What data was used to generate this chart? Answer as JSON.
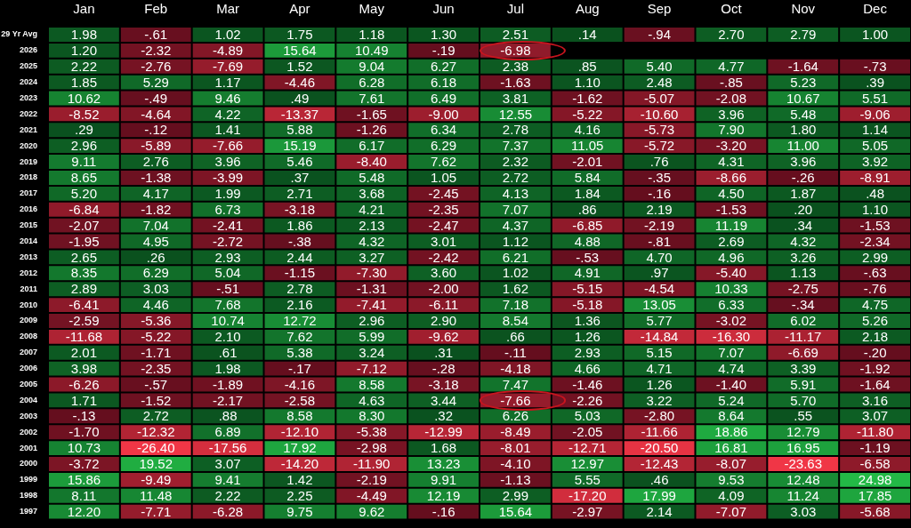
{
  "chart_data": {
    "type": "heatmap",
    "categories": [
      "Jan",
      "Feb",
      "Mar",
      "Apr",
      "May",
      "Jun",
      "Jul",
      "Aug",
      "Sep",
      "Oct",
      "Nov",
      "Dec"
    ],
    "y_categories": [
      "29 Yr Avg",
      "2026",
      "2025",
      "2024",
      "2023",
      "2022",
      "2021",
      "2020",
      "2019",
      "2018",
      "2017",
      "2016",
      "2015",
      "2014",
      "2013",
      "2012",
      "2011",
      "2010",
      "2009",
      "2008",
      "2007",
      "2006",
      "2005",
      "2004",
      "2003",
      "2002",
      "2001",
      "2000",
      "1999",
      "1998",
      "1997"
    ],
    "cells": [
      [
        1.98,
        -0.61,
        1.02,
        1.75,
        1.18,
        1.3,
        2.51,
        0.14,
        -0.94,
        2.7,
        2.79,
        1.0
      ],
      [
        1.2,
        -2.32,
        -4.89,
        15.64,
        10.49,
        -0.19,
        -6.98,
        null,
        null,
        null,
        null,
        null
      ],
      [
        2.22,
        -2.76,
        -7.69,
        1.52,
        9.04,
        6.27,
        2.38,
        0.85,
        5.4,
        4.77,
        -1.64,
        -0.73
      ],
      [
        1.85,
        5.29,
        1.17,
        -4.46,
        6.28,
        6.18,
        -1.63,
        1.1,
        2.48,
        -0.85,
        5.23,
        0.39
      ],
      [
        10.62,
        -0.49,
        9.46,
        0.49,
        7.61,
        6.49,
        3.81,
        -1.62,
        -5.07,
        -2.08,
        10.67,
        5.51
      ],
      [
        -8.52,
        -4.64,
        4.22,
        -13.37,
        -1.65,
        -9.0,
        12.55,
        -5.22,
        -10.6,
        3.96,
        5.48,
        -9.06
      ],
      [
        0.29,
        -0.12,
        1.41,
        5.88,
        -1.26,
        6.34,
        2.78,
        4.16,
        -5.73,
        7.9,
        1.8,
        1.14
      ],
      [
        2.96,
        -5.89,
        -7.66,
        15.19,
        6.17,
        6.29,
        7.37,
        11.05,
        -5.72,
        -3.2,
        11.0,
        5.05
      ],
      [
        9.11,
        2.76,
        3.96,
        5.46,
        -8.4,
        7.62,
        2.32,
        -2.01,
        0.76,
        4.31,
        3.96,
        3.92
      ],
      [
        8.65,
        -1.38,
        -3.99,
        0.37,
        5.48,
        1.05,
        2.72,
        5.84,
        -0.35,
        -8.66,
        -0.26,
        -8.91
      ],
      [
        5.2,
        4.17,
        1.99,
        2.71,
        3.68,
        -2.45,
        4.13,
        1.84,
        -0.16,
        4.5,
        1.87,
        0.48
      ],
      [
        -6.84,
        -1.82,
        6.73,
        -3.18,
        4.21,
        -2.35,
        7.07,
        0.86,
        2.19,
        -1.53,
        0.2,
        1.1
      ],
      [
        -2.07,
        7.04,
        -2.41,
        1.86,
        2.13,
        -2.47,
        4.37,
        -6.85,
        -2.19,
        11.19,
        0.34,
        -1.53
      ],
      [
        -1.95,
        4.95,
        -2.72,
        -0.38,
        4.32,
        3.01,
        1.12,
        4.88,
        -0.81,
        2.69,
        4.32,
        -2.34
      ],
      [
        2.65,
        0.26,
        2.93,
        2.44,
        3.27,
        -2.42,
        6.21,
        -0.53,
        4.7,
        4.96,
        3.26,
        2.99
      ],
      [
        8.35,
        6.29,
        5.04,
        -1.15,
        -7.3,
        3.6,
        1.02,
        4.91,
        0.97,
        -5.4,
        1.13,
        -0.63
      ],
      [
        2.89,
        3.03,
        -0.51,
        2.78,
        -1.31,
        -2.0,
        1.62,
        -5.15,
        -4.54,
        10.33,
        -2.75,
        -0.76
      ],
      [
        -6.41,
        4.46,
        7.68,
        2.16,
        -7.41,
        -6.11,
        7.18,
        -5.18,
        13.05,
        6.33,
        -0.34,
        4.75
      ],
      [
        -2.59,
        -5.36,
        10.74,
        12.72,
        2.96,
        2.9,
        8.54,
        1.36,
        5.77,
        -3.02,
        6.02,
        5.26
      ],
      [
        -11.68,
        -5.22,
        2.1,
        7.62,
        5.99,
        -9.62,
        0.66,
        1.26,
        -14.84,
        -16.3,
        -11.17,
        2.18
      ],
      [
        2.01,
        -1.71,
        0.61,
        5.38,
        3.24,
        0.31,
        -0.11,
        2.93,
        5.15,
        7.07,
        -6.69,
        -0.2
      ],
      [
        3.98,
        -2.35,
        1.98,
        -0.17,
        -7.12,
        -0.28,
        -4.18,
        4.66,
        4.71,
        4.74,
        3.39,
        -1.92
      ],
      [
        -6.26,
        -0.57,
        -1.89,
        -4.16,
        8.58,
        -3.18,
        7.47,
        -1.46,
        1.26,
        -1.4,
        5.91,
        -1.64
      ],
      [
        1.71,
        -1.52,
        -2.17,
        -2.58,
        4.63,
        3.44,
        -7.66,
        -2.26,
        3.22,
        5.24,
        5.7,
        3.16
      ],
      [
        -0.13,
        2.72,
        0.88,
        8.58,
        8.3,
        0.32,
        6.26,
        5.03,
        -2.8,
        8.64,
        0.55,
        3.07
      ],
      [
        -1.7,
        -12.32,
        6.89,
        -12.1,
        -5.38,
        -12.99,
        -8.49,
        -2.05,
        -11.66,
        18.86,
        12.79,
        -11.8
      ],
      [
        10.73,
        -26.4,
        -17.56,
        17.92,
        -2.98,
        1.68,
        -8.01,
        -12.71,
        -20.5,
        16.81,
        16.95,
        -1.19
      ],
      [
        -3.72,
        19.52,
        3.07,
        -14.2,
        -11.9,
        13.23,
        -4.1,
        12.97,
        -12.43,
        -8.07,
        -23.63,
        -6.58
      ],
      [
        15.86,
        -9.49,
        9.41,
        1.42,
        -2.19,
        9.91,
        -1.13,
        5.55,
        0.46,
        9.53,
        12.48,
        24.98
      ],
      [
        8.11,
        11.48,
        2.22,
        2.25,
        -4.49,
        12.19,
        2.99,
        -17.2,
        17.99,
        4.09,
        11.24,
        17.85
      ],
      [
        12.2,
        -7.71,
        -6.28,
        9.75,
        9.62,
        -0.16,
        15.64,
        -2.97,
        2.14,
        -7.07,
        3.03,
        -5.68
      ]
    ],
    "cell_labels": [
      [
        "1.98",
        "-.61",
        "1.02",
        "1.75",
        "1.18",
        "1.30",
        "2.51",
        ".14",
        "-.94",
        "2.70",
        "2.79",
        "1.00"
      ],
      [
        "1.20",
        "-2.32",
        "-4.89",
        "15.64",
        "10.49",
        "-.19",
        "-6.98",
        null,
        null,
        null,
        null,
        null
      ],
      [
        "2.22",
        "-2.76",
        "-7.69",
        "1.52",
        "9.04",
        "6.27",
        "2.38",
        ".85",
        "5.40",
        "4.77",
        "-1.64",
        "-.73"
      ],
      [
        "1.85",
        "5.29",
        "1.17",
        "-4.46",
        "6.28",
        "6.18",
        "-1.63",
        "1.10",
        "2.48",
        "-.85",
        "5.23",
        ".39"
      ],
      [
        "10.62",
        "-.49",
        "9.46",
        ".49",
        "7.61",
        "6.49",
        "3.81",
        "-1.62",
        "-5.07",
        "-2.08",
        "10.67",
        "5.51"
      ],
      [
        "-8.52",
        "-4.64",
        "4.22",
        "-13.37",
        "-1.65",
        "-9.00",
        "12.55",
        "-5.22",
        "-10.60",
        "3.96",
        "5.48",
        "-9.06"
      ],
      [
        ".29",
        "-.12",
        "1.41",
        "5.88",
        "-1.26",
        "6.34",
        "2.78",
        "4.16",
        "-5.73",
        "7.90",
        "1.80",
        "1.14"
      ],
      [
        "2.96",
        "-5.89",
        "-7.66",
        "15.19",
        "6.17",
        "6.29",
        "7.37",
        "11.05",
        "-5.72",
        "-3.20",
        "11.00",
        "5.05"
      ],
      [
        "9.11",
        "2.76",
        "3.96",
        "5.46",
        "-8.40",
        "7.62",
        "2.32",
        "-2.01",
        ".76",
        "4.31",
        "3.96",
        "3.92"
      ],
      [
        "8.65",
        "-1.38",
        "-3.99",
        ".37",
        "5.48",
        "1.05",
        "2.72",
        "5.84",
        "-.35",
        "-8.66",
        "-.26",
        "-8.91"
      ],
      [
        "5.20",
        "4.17",
        "1.99",
        "2.71",
        "3.68",
        "-2.45",
        "4.13",
        "1.84",
        "-.16",
        "4.50",
        "1.87",
        ".48"
      ],
      [
        "-6.84",
        "-1.82",
        "6.73",
        "-3.18",
        "4.21",
        "-2.35",
        "7.07",
        ".86",
        "2.19",
        "-1.53",
        ".20",
        "1.10"
      ],
      [
        "-2.07",
        "7.04",
        "-2.41",
        "1.86",
        "2.13",
        "-2.47",
        "4.37",
        "-6.85",
        "-2.19",
        "11.19",
        ".34",
        "-1.53"
      ],
      [
        "-1.95",
        "4.95",
        "-2.72",
        "-.38",
        "4.32",
        "3.01",
        "1.12",
        "4.88",
        "-.81",
        "2.69",
        "4.32",
        "-2.34"
      ],
      [
        "2.65",
        ".26",
        "2.93",
        "2.44",
        "3.27",
        "-2.42",
        "6.21",
        "-.53",
        "4.70",
        "4.96",
        "3.26",
        "2.99"
      ],
      [
        "8.35",
        "6.29",
        "5.04",
        "-1.15",
        "-7.30",
        "3.60",
        "1.02",
        "4.91",
        ".97",
        "-5.40",
        "1.13",
        "-.63"
      ],
      [
        "2.89",
        "3.03",
        "-.51",
        "2.78",
        "-1.31",
        "-2.00",
        "1.62",
        "-5.15",
        "-4.54",
        "10.33",
        "-2.75",
        "-.76"
      ],
      [
        "-6.41",
        "4.46",
        "7.68",
        "2.16",
        "-7.41",
        "-6.11",
        "7.18",
        "-5.18",
        "13.05",
        "6.33",
        "-.34",
        "4.75"
      ],
      [
        "-2.59",
        "-5.36",
        "10.74",
        "12.72",
        "2.96",
        "2.90",
        "8.54",
        "1.36",
        "5.77",
        "-3.02",
        "6.02",
        "5.26"
      ],
      [
        "-11.68",
        "-5.22",
        "2.10",
        "7.62",
        "5.99",
        "-9.62",
        ".66",
        "1.26",
        "-14.84",
        "-16.30",
        "-11.17",
        "2.18"
      ],
      [
        "2.01",
        "-1.71",
        ".61",
        "5.38",
        "3.24",
        ".31",
        "-.11",
        "2.93",
        "5.15",
        "7.07",
        "-6.69",
        "-.20"
      ],
      [
        "3.98",
        "-2.35",
        "1.98",
        "-.17",
        "-7.12",
        "-.28",
        "-4.18",
        "4.66",
        "4.71",
        "4.74",
        "3.39",
        "-1.92"
      ],
      [
        "-6.26",
        "-.57",
        "-1.89",
        "-4.16",
        "8.58",
        "-3.18",
        "7.47",
        "-1.46",
        "1.26",
        "-1.40",
        "5.91",
        "-1.64"
      ],
      [
        "1.71",
        "-1.52",
        "-2.17",
        "-2.58",
        "4.63",
        "3.44",
        "-7.66",
        "-2.26",
        "3.22",
        "5.24",
        "5.70",
        "3.16"
      ],
      [
        "-.13",
        "2.72",
        ".88",
        "8.58",
        "8.30",
        ".32",
        "6.26",
        "5.03",
        "-2.80",
        "8.64",
        ".55",
        "3.07"
      ],
      [
        "-1.70",
        "-12.32",
        "6.89",
        "-12.10",
        "-5.38",
        "-12.99",
        "-8.49",
        "-2.05",
        "-11.66",
        "18.86",
        "12.79",
        "-11.80"
      ],
      [
        "10.73",
        "-26.40",
        "-17.56",
        "17.92",
        "-2.98",
        "1.68",
        "-8.01",
        "-12.71",
        "-20.50",
        "16.81",
        "16.95",
        "-1.19"
      ],
      [
        "-3.72",
        "19.52",
        "3.07",
        "-14.20",
        "-11.90",
        "13.23",
        "-4.10",
        "12.97",
        "-12.43",
        "-8.07",
        "-23.63",
        "-6.58"
      ],
      [
        "15.86",
        "-9.49",
        "9.41",
        "1.42",
        "-2.19",
        "9.91",
        "-1.13",
        "5.55",
        ".46",
        "9.53",
        "12.48",
        "24.98"
      ],
      [
        "8.11",
        "11.48",
        "2.22",
        "2.25",
        "-4.49",
        "12.19",
        "2.99",
        "-17.20",
        "17.99",
        "4.09",
        "11.24",
        "17.85"
      ],
      [
        "12.20",
        "-7.71",
        "-6.28",
        "9.75",
        "9.62",
        "-.16",
        "15.64",
        "-2.97",
        "2.14",
        "-7.07",
        "3.03",
        "-5.68"
      ]
    ]
  }
}
